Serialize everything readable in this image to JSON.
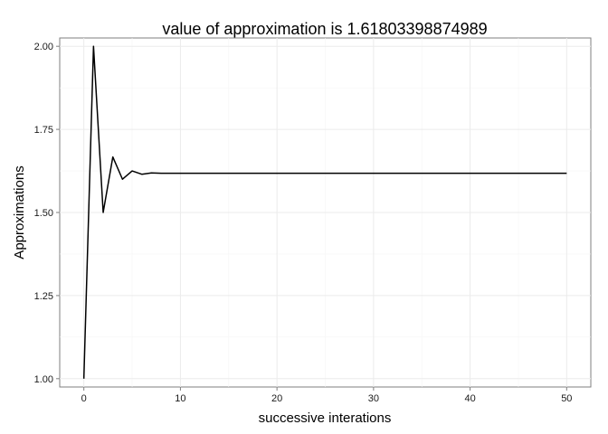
{
  "chart_data": {
    "type": "line",
    "title": "value of approximation is 1.61803398874989",
    "xlabel": "successive interations",
    "ylabel": "Approximations",
    "xlim": [
      -2.5,
      52.5
    ],
    "ylim": [
      0.975,
      2.025
    ],
    "x_ticks": [
      0,
      10,
      20,
      30,
      40,
      50
    ],
    "x_tick_labels": [
      "0",
      "10",
      "20",
      "30",
      "40",
      "50"
    ],
    "y_ticks": [
      1.0,
      1.25,
      1.5,
      1.75,
      2.0
    ],
    "y_tick_labels": [
      "1.00",
      "1.25",
      "1.50",
      "1.75",
      "2.00"
    ],
    "grid": true,
    "series": [
      {
        "color": "#000000",
        "x": [
          0,
          1,
          2,
          3,
          4,
          5,
          6,
          7,
          8,
          9,
          10,
          11,
          12,
          13,
          14,
          15,
          16,
          17,
          18,
          19,
          20,
          21,
          22,
          23,
          24,
          25,
          26,
          27,
          28,
          29,
          30,
          31,
          32,
          33,
          34,
          35,
          36,
          37,
          38,
          39,
          40,
          41,
          42,
          43,
          44,
          45,
          46,
          47,
          48,
          49,
          50
        ],
        "values": [
          1,
          2,
          1.5,
          1.667,
          1.6,
          1.625,
          1.615,
          1.619,
          1.618,
          1.618,
          1.618,
          1.618,
          1.618,
          1.618,
          1.618,
          1.618,
          1.618,
          1.618,
          1.618,
          1.618,
          1.618,
          1.618,
          1.618,
          1.618,
          1.618,
          1.618,
          1.618,
          1.618,
          1.618,
          1.618,
          1.618,
          1.618,
          1.618,
          1.618,
          1.618,
          1.618,
          1.618,
          1.618,
          1.618,
          1.618,
          1.618,
          1.618,
          1.618,
          1.618,
          1.618,
          1.618,
          1.618,
          1.618,
          1.618,
          1.618,
          1.618
        ]
      }
    ]
  }
}
